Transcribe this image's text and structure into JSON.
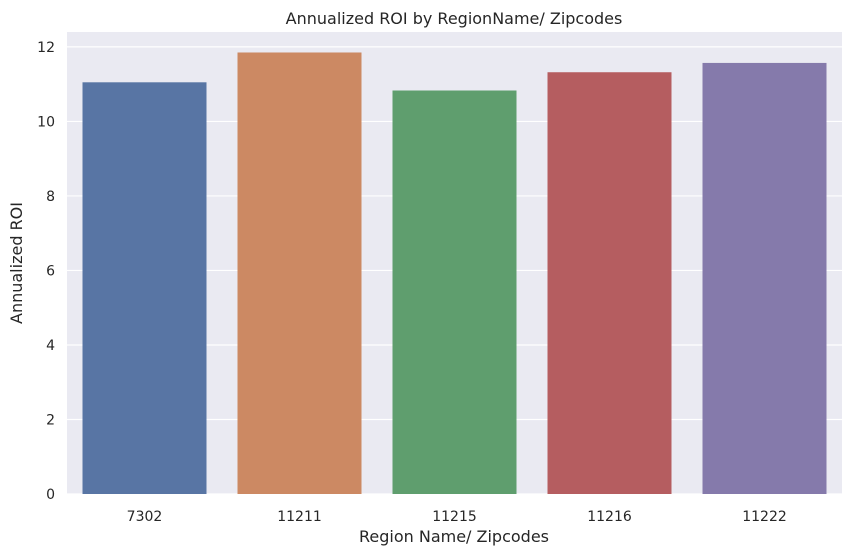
{
  "chart_data": {
    "type": "bar",
    "title": "Annualized ROI by RegionName/ Zipcodes",
    "xlabel": "Region Name/ Zipcodes",
    "ylabel": "Annualized ROI",
    "categories": [
      "7302",
      "11211",
      "11215",
      "11216",
      "11222"
    ],
    "values": [
      11.05,
      11.85,
      10.83,
      11.32,
      11.57
    ],
    "colors": [
      "#5875a4",
      "#cc8963",
      "#5f9e6e",
      "#b55d60",
      "#857aab"
    ],
    "ylim": [
      0,
      12.4
    ],
    "yticks": [
      0,
      2,
      4,
      6,
      8,
      10,
      12
    ],
    "ytick_labels": [
      "0",
      "2",
      "4",
      "6",
      "8",
      "10",
      "12"
    ],
    "grid": true,
    "background": "#eaeaf2"
  }
}
